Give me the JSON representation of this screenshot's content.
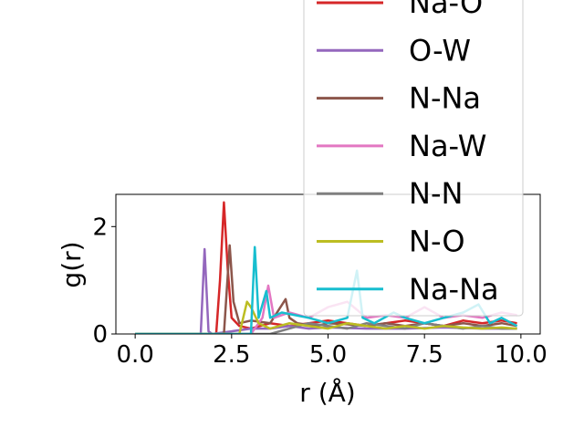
{
  "chart_data": {
    "type": "line",
    "xlabel": "r (Å)",
    "ylabel": "g(r)",
    "xlim": [
      -0.5,
      10.5
    ],
    "ylim": [
      0,
      2.6
    ],
    "xticks": [
      0.0,
      2.5,
      5.0,
      7.5,
      10.0
    ],
    "xtick_labels": [
      "0.0",
      "2.5",
      "5.0",
      "7.5",
      "10.0"
    ],
    "yticks": [
      0,
      2
    ],
    "ytick_labels": [
      "0",
      "2"
    ],
    "grid": false,
    "legend_position": "upper-right, overflowing above the axes",
    "series": [
      {
        "name": "Na-O",
        "color": "#d62728",
        "x": [
          0,
          2.1,
          2.2,
          2.3,
          2.4,
          2.5,
          2.7,
          3.0,
          3.5,
          4.0,
          4.5,
          5.0,
          5.5,
          6.0,
          6.5,
          7.0,
          7.5,
          8.0,
          8.5,
          9.0,
          9.5,
          9.9
        ],
        "y": [
          0,
          0,
          1.0,
          2.45,
          1.2,
          0.3,
          0.15,
          0.1,
          0.2,
          0.15,
          0.2,
          0.25,
          0.2,
          0.15,
          0.2,
          0.25,
          0.2,
          0.15,
          0.25,
          0.2,
          0.25,
          0.2
        ]
      },
      {
        "name": "O-W",
        "color": "#9467bd",
        "x": [
          0,
          1.7,
          1.8,
          1.9,
          2.0,
          2.5,
          3.0,
          3.5,
          4.0,
          4.5,
          5.0,
          6.0,
          7.0,
          8.0,
          9.0,
          9.9
        ],
        "y": [
          0,
          0,
          1.58,
          0.05,
          0,
          0.05,
          0.1,
          0.1,
          0.15,
          0.1,
          0.12,
          0.1,
          0.1,
          0.12,
          0.1,
          0.1
        ]
      },
      {
        "name": "N-Na",
        "color": "#8c564b",
        "x": [
          0,
          2.3,
          2.45,
          2.55,
          2.7,
          3.0,
          3.5,
          3.9,
          4.0,
          4.2,
          4.7,
          5.0,
          5.5,
          6.0,
          6.5,
          7.0,
          7.5,
          8.0,
          8.5,
          9.0,
          9.5,
          9.9
        ],
        "y": [
          0,
          0,
          1.65,
          0.6,
          0.2,
          0.25,
          0.2,
          0.65,
          0.3,
          0.2,
          0.15,
          0.2,
          0.18,
          0.15,
          0.2,
          0.15,
          0.2,
          0.15,
          0.2,
          0.15,
          0.2,
          0.15
        ]
      },
      {
        "name": "Na-W",
        "color": "#e377c2",
        "x": [
          0,
          3.0,
          3.3,
          3.45,
          3.6,
          4.0,
          4.5,
          5.0,
          5.5,
          6.0,
          6.5,
          7.0,
          7.5,
          8.0,
          8.5,
          9.0,
          9.5,
          9.9
        ],
        "y": [
          0,
          0,
          0.3,
          0.9,
          0.3,
          0.4,
          0.3,
          0.5,
          0.6,
          0.3,
          0.35,
          0.3,
          0.5,
          0.3,
          0.35,
          0.3,
          0.4,
          0.35
        ]
      },
      {
        "name": "N-N",
        "color": "#7f7f7f",
        "x": [
          0,
          3.5,
          4.0,
          4.5,
          5.0,
          5.5,
          6.0,
          6.5,
          7.0,
          7.5,
          8.0,
          8.5,
          9.0,
          9.5,
          9.9
        ],
        "y": [
          0,
          0,
          0.1,
          0.2,
          0.15,
          0.1,
          0.2,
          0.15,
          0.1,
          0.2,
          0.15,
          0.1,
          0.15,
          0.1,
          0.1
        ]
      },
      {
        "name": "N-O",
        "color": "#bcbd22",
        "x": [
          0,
          2.7,
          2.9,
          3.0,
          3.2,
          3.5,
          4.0,
          4.5,
          5.0,
          5.5,
          6.0,
          6.5,
          7.0,
          7.5,
          8.0,
          8.5,
          9.0,
          9.5,
          9.9
        ],
        "y": [
          0,
          0,
          0.6,
          0.5,
          0.2,
          0.1,
          0.2,
          0.15,
          0.1,
          0.2,
          0.15,
          0.1,
          0.15,
          0.1,
          0.15,
          0.12,
          0.1,
          0.12,
          0.1
        ]
      },
      {
        "name": "Na-Na",
        "color": "#17becf",
        "x": [
          0,
          3.0,
          3.1,
          3.2,
          3.4,
          3.5,
          3.8,
          4.5,
          5.0,
          5.5,
          5.75,
          5.9,
          6.2,
          6.7,
          7.0,
          7.5,
          8.0,
          8.5,
          8.9,
          9.2,
          9.5,
          9.9
        ],
        "y": [
          0,
          0,
          1.62,
          0.3,
          0.8,
          0.3,
          0.4,
          0.3,
          0.2,
          0.3,
          1.18,
          0.3,
          0.2,
          0.4,
          0.3,
          0.2,
          0.3,
          0.4,
          0.55,
          0.2,
          0.3,
          0.15
        ]
      }
    ]
  }
}
